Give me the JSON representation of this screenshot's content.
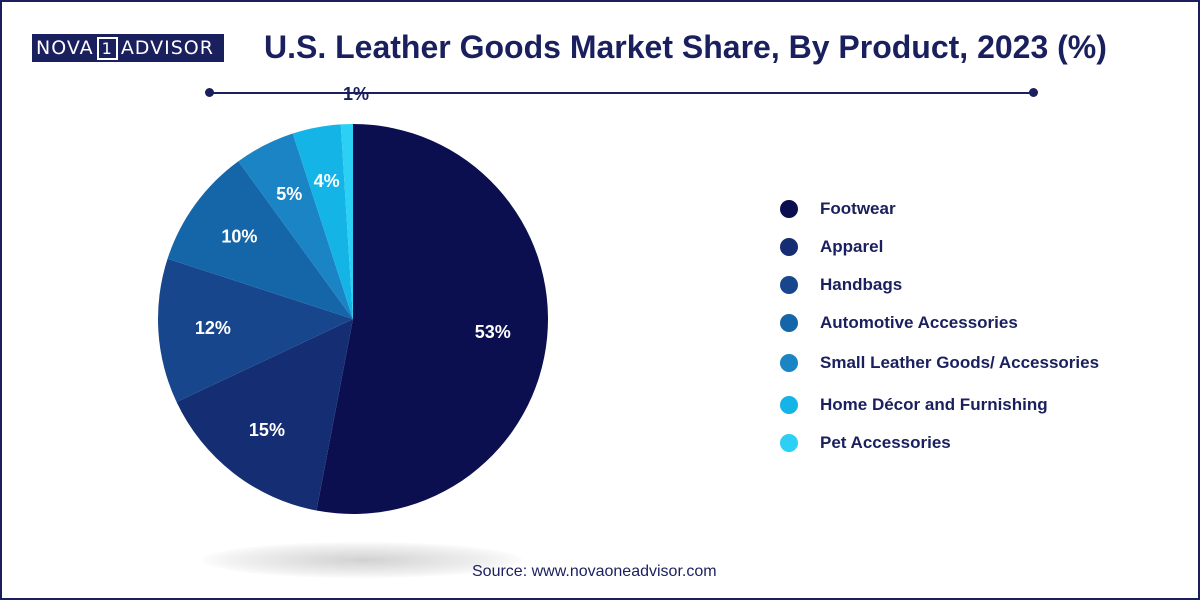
{
  "logo": {
    "left_text": "NOVA",
    "mark_text": "1",
    "right_text": "ADVISOR"
  },
  "source": "Source: www.novaoneadvisor.com",
  "chart_data": {
    "type": "pie",
    "title": "U.S. Leather Goods Market Share, By Product, 2023 (%)",
    "legend_position": "right",
    "slices": [
      {
        "name": "Footwear",
        "value": 53,
        "label": "53%",
        "color": "#0b0f4f"
      },
      {
        "name": "Apparel",
        "value": 15,
        "label": "15%",
        "color": "#152e73"
      },
      {
        "name": "Handbags",
        "value": 12,
        "label": "12%",
        "color": "#17468c"
      },
      {
        "name": "Automotive Accessories",
        "value": 10,
        "label": "10%",
        "color": "#1466a8"
      },
      {
        "name": "Small Leather Goods/ Accessories",
        "value": 5,
        "label": "5%",
        "color": "#1a84c4"
      },
      {
        "name": "Home Décor and Furnishing",
        "value": 4,
        "label": "4%",
        "color": "#14b5e6"
      },
      {
        "name": "Pet Accessories",
        "value": 1,
        "label": "1%",
        "color": "#2bd0f4"
      }
    ]
  }
}
